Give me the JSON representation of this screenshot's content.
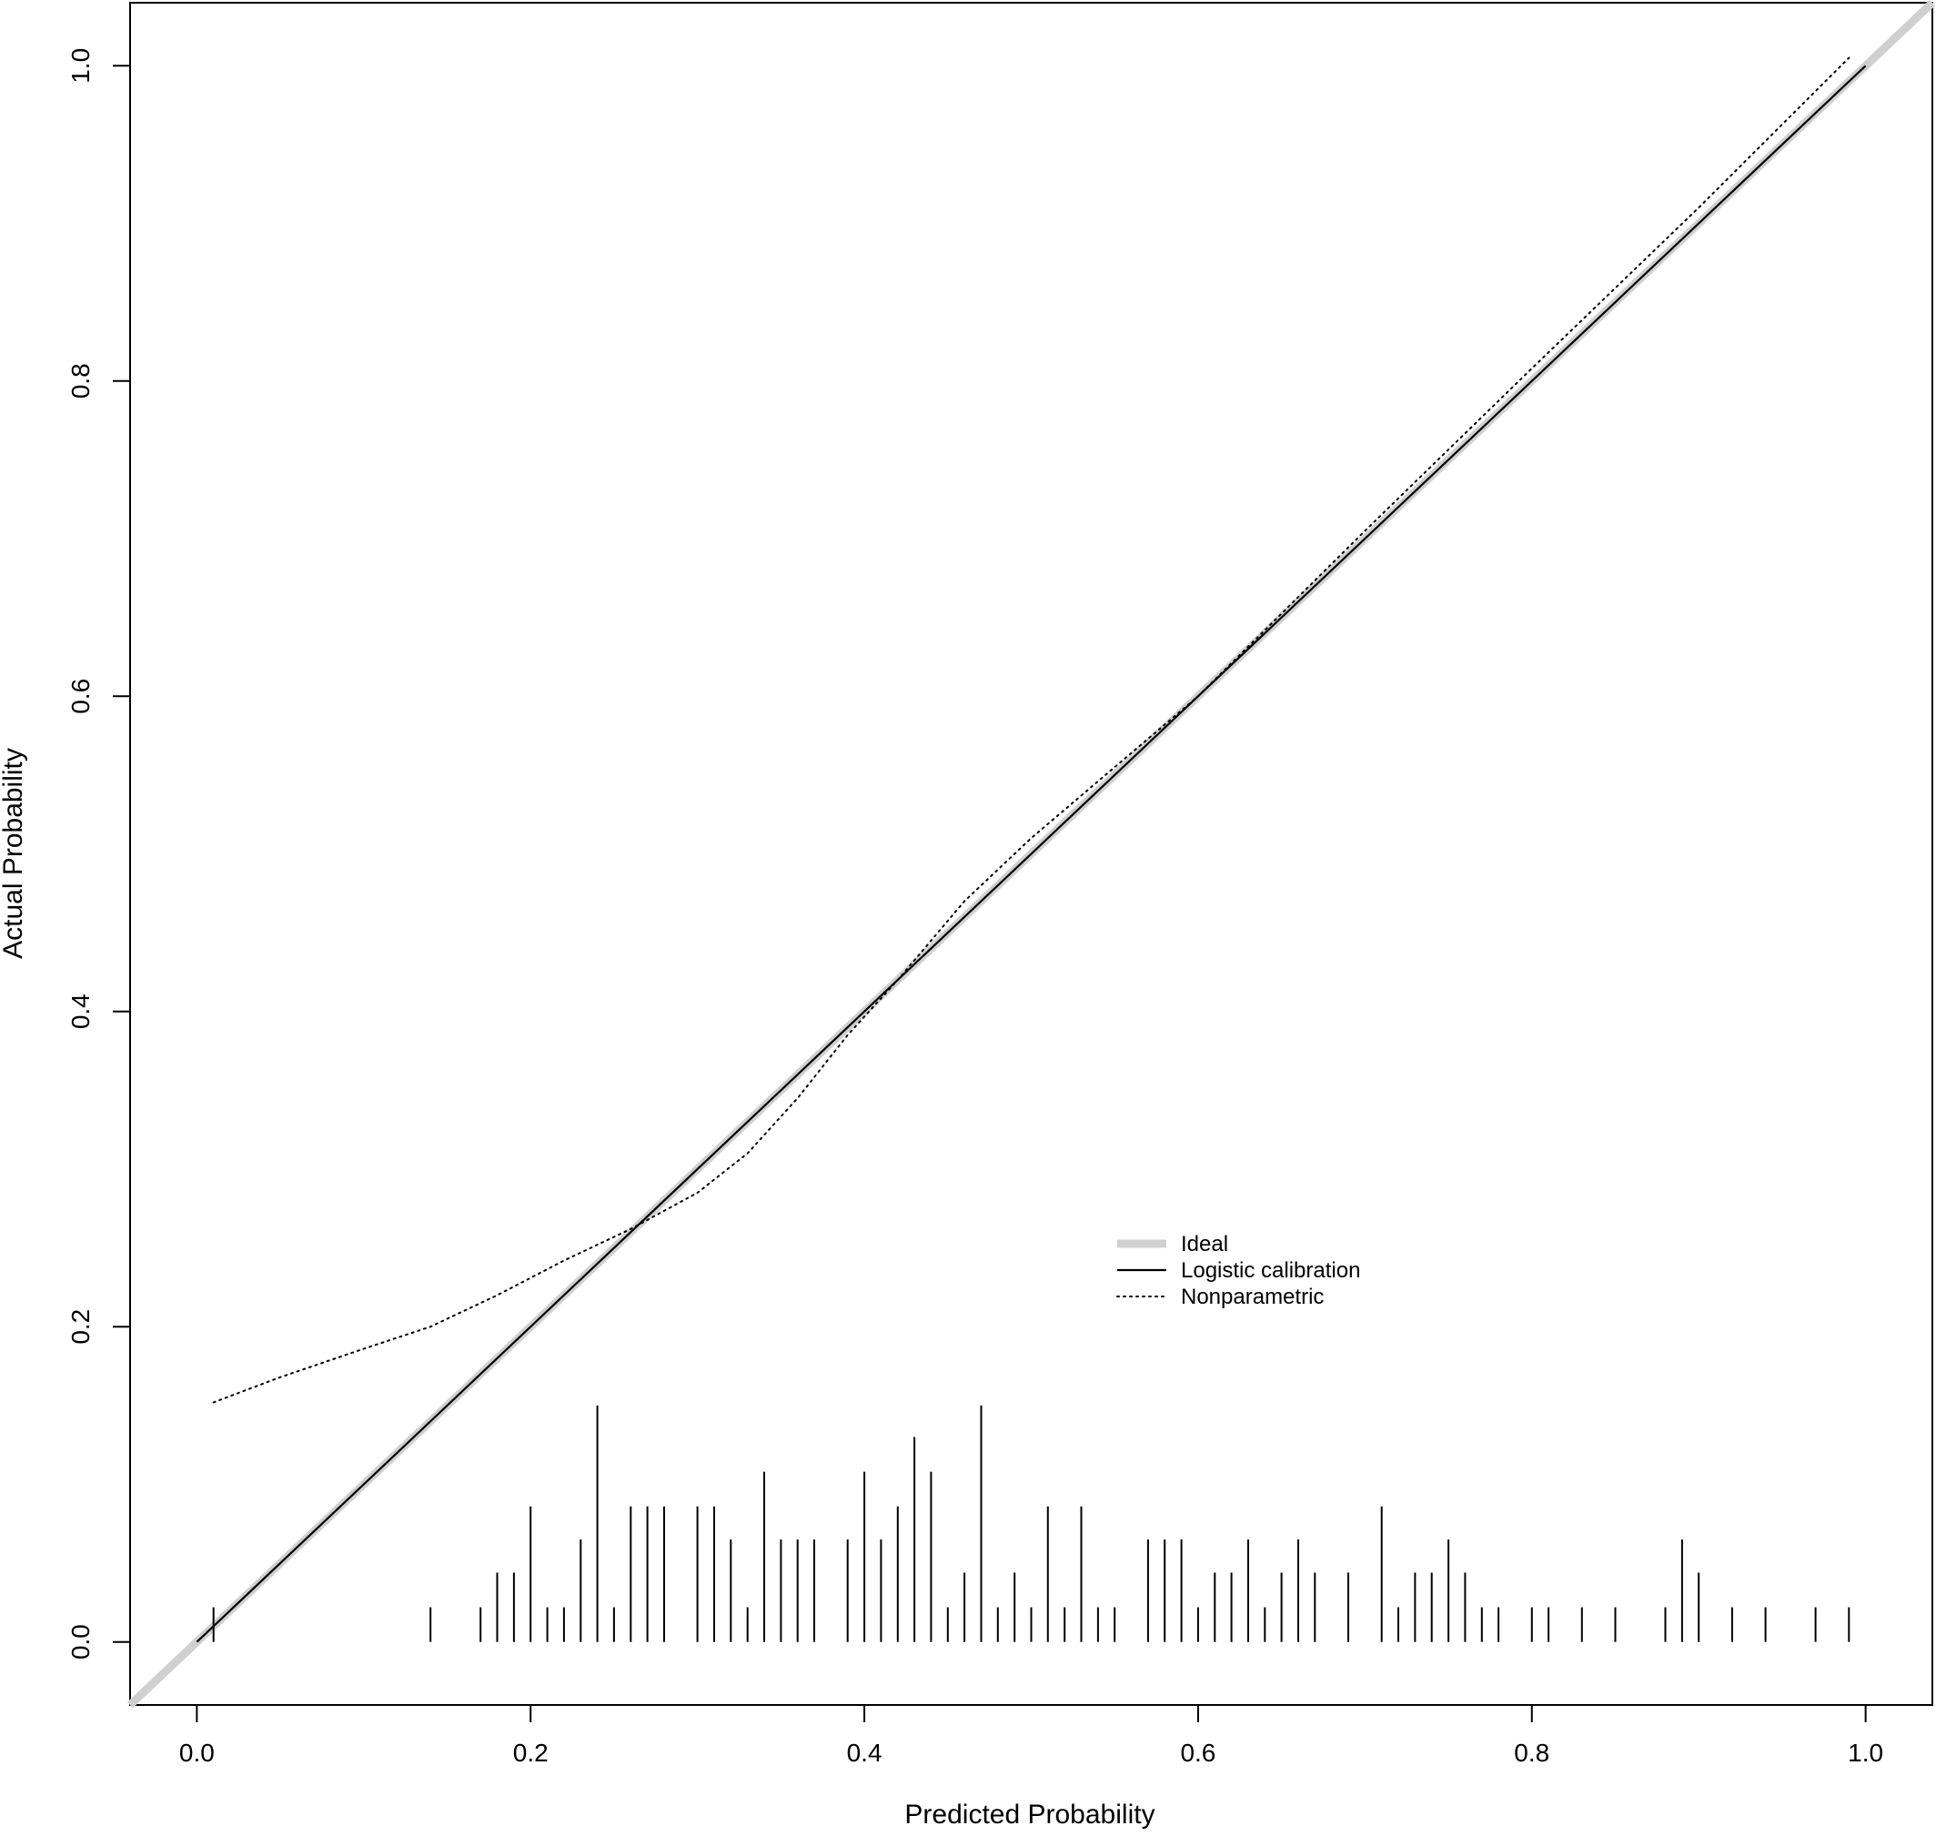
{
  "chart_data": {
    "type": "line",
    "title": "",
    "xlabel": "Predicted Probability",
    "ylabel": "Actual Probability",
    "xlim": [
      -0.04,
      1.04
    ],
    "ylim": [
      -0.04,
      1.04
    ],
    "grid": false,
    "x_ticks": [
      "0.0",
      "0.2",
      "0.4",
      "0.6",
      "0.8",
      "1.0"
    ],
    "y_ticks": [
      "0.0",
      "0.2",
      "0.4",
      "0.6",
      "0.8",
      "1.0"
    ],
    "legend": {
      "position": "center-right",
      "entries": [
        "Ideal",
        "Logistic calibration",
        "Nonparametric"
      ]
    },
    "series": [
      {
        "name": "Ideal",
        "style": "thick-gray",
        "color": "#d0d0d0",
        "x": [
          -0.04,
          1.04
        ],
        "y": [
          -0.04,
          1.04
        ]
      },
      {
        "name": "Logistic calibration",
        "style": "solid",
        "color": "#000000",
        "x": [
          0.0,
          1.0
        ],
        "y": [
          0.0,
          1.0
        ]
      },
      {
        "name": "Nonparametric",
        "style": "dotted",
        "color": "#000000",
        "x": [
          0.01,
          0.05,
          0.1,
          0.14,
          0.18,
          0.22,
          0.26,
          0.3,
          0.33,
          0.36,
          0.39,
          0.42,
          0.46,
          0.5,
          0.55,
          0.6,
          0.7,
          0.8,
          0.9,
          0.99
        ],
        "y": [
          0.152,
          0.168,
          0.186,
          0.2,
          0.22,
          0.242,
          0.262,
          0.285,
          0.31,
          0.345,
          0.385,
          0.42,
          0.47,
          0.51,
          0.555,
          0.6,
          0.705,
          0.808,
          0.91,
          1.005
        ]
      }
    ],
    "rug": {
      "x": [
        0.01,
        0.14,
        0.17,
        0.18,
        0.19,
        0.2,
        0.21,
        0.22,
        0.23,
        0.24,
        0.25,
        0.26,
        0.27,
        0.28,
        0.3,
        0.31,
        0.32,
        0.33,
        0.34,
        0.35,
        0.36,
        0.37,
        0.39,
        0.4,
        0.41,
        0.42,
        0.43,
        0.44,
        0.45,
        0.46,
        0.47,
        0.48,
        0.49,
        0.5,
        0.51,
        0.52,
        0.53,
        0.54,
        0.55,
        0.57,
        0.58,
        0.59,
        0.6,
        0.61,
        0.62,
        0.63,
        0.64,
        0.65,
        0.66,
        0.67,
        0.69,
        0.71,
        0.72,
        0.73,
        0.74,
        0.75,
        0.76,
        0.77,
        0.78,
        0.8,
        0.81,
        0.83,
        0.85,
        0.88,
        0.89,
        0.9,
        0.92,
        0.94,
        0.97,
        0.99
      ],
      "height": [
        0.022,
        0.022,
        0.022,
        0.044,
        0.044,
        0.086,
        0.022,
        0.022,
        0.065,
        0.15,
        0.022,
        0.086,
        0.086,
        0.086,
        0.086,
        0.086,
        0.065,
        0.022,
        0.108,
        0.065,
        0.065,
        0.065,
        0.065,
        0.108,
        0.065,
        0.086,
        0.13,
        0.108,
        0.022,
        0.044,
        0.15,
        0.022,
        0.044,
        0.022,
        0.086,
        0.022,
        0.086,
        0.022,
        0.022,
        0.065,
        0.065,
        0.065,
        0.022,
        0.044,
        0.044,
        0.065,
        0.022,
        0.044,
        0.065,
        0.044,
        0.044,
        0.086,
        0.022,
        0.044,
        0.044,
        0.065,
        0.044,
        0.022,
        0.022,
        0.022,
        0.022,
        0.022,
        0.022,
        0.022,
        0.065,
        0.044,
        0.022,
        0.022,
        0.022,
        0.022
      ]
    }
  }
}
